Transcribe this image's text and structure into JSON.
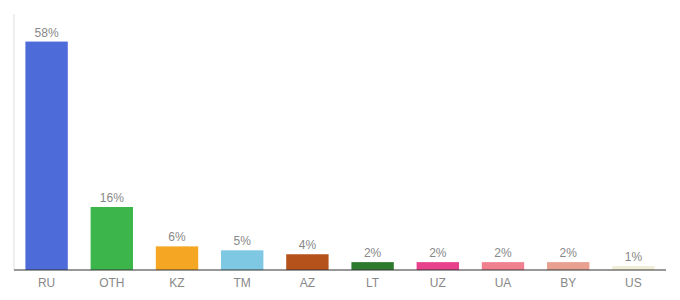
{
  "chart_data": {
    "type": "bar",
    "categories": [
      "RU",
      "OTH",
      "KZ",
      "TM",
      "AZ",
      "LT",
      "UZ",
      "UA",
      "BY",
      "US"
    ],
    "values": [
      58,
      16,
      6,
      5,
      4,
      2,
      2,
      2,
      2,
      1
    ],
    "value_labels": [
      "58%",
      "16%",
      "6%",
      "5%",
      "4%",
      "2%",
      "2%",
      "2%",
      "2%",
      "1%"
    ],
    "colors": [
      "#4d6cd9",
      "#3cb54a",
      "#f5a623",
      "#7ec8e3",
      "#b5521b",
      "#2d7a2d",
      "#e8428c",
      "#f08090",
      "#e8a090",
      "#f0eed8"
    ],
    "ylim": [
      0,
      65
    ],
    "data_labels": true,
    "tick_labels": "x",
    "grid": false
  }
}
